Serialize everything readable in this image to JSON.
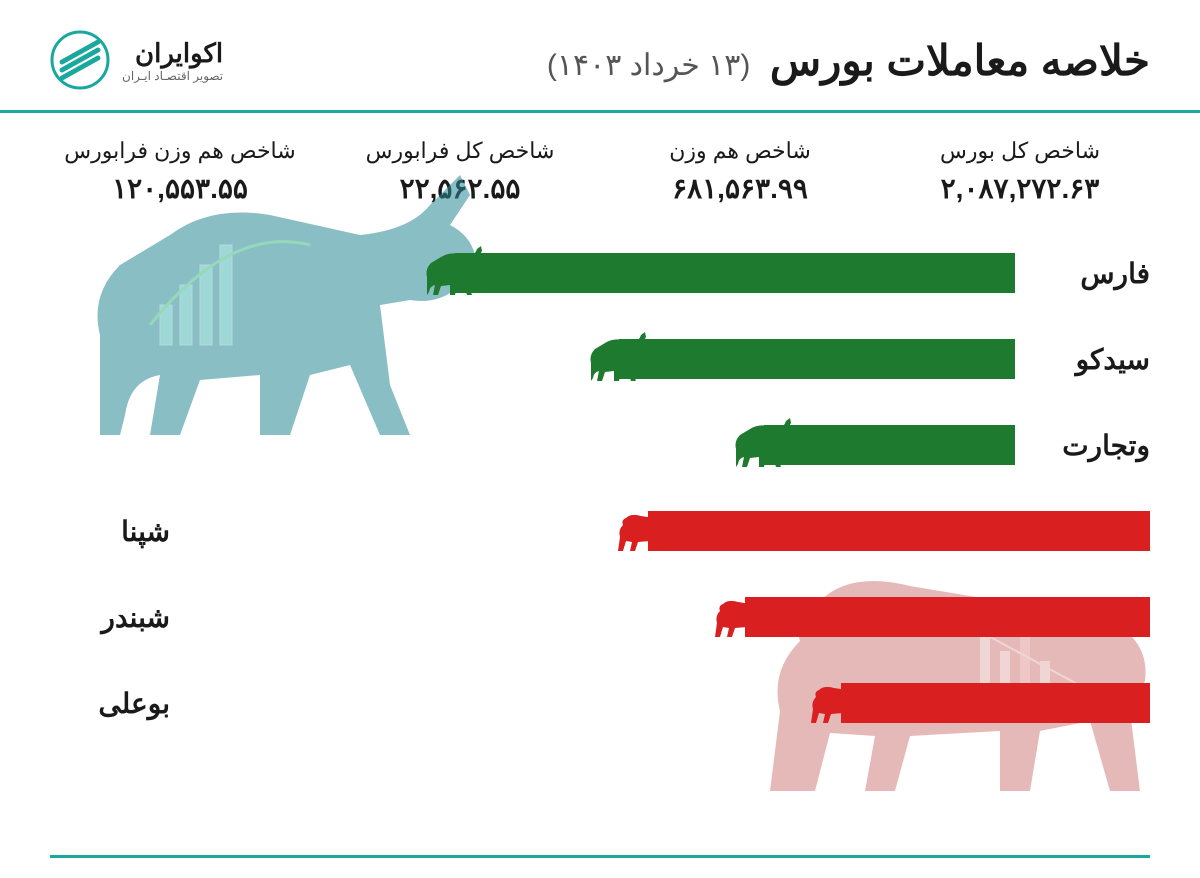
{
  "colors": {
    "accent": "#1aa89e",
    "positive": "#1e7a2e",
    "negative": "#d91f1f",
    "text": "#1a1a1a",
    "bg_bull_tint": "#2a8a95",
    "bg_bear_tint": "#b93a3a"
  },
  "header": {
    "title": "خلاصه معاملات بورس",
    "date": "(۱۳ خرداد ۱۴۰۳)"
  },
  "logo": {
    "name": "اکوایران",
    "tagline": "تصویر اقتصـاد ایـران"
  },
  "indices": [
    {
      "label": "شاخص کل بورس",
      "value": "۲,۰۸۷,۲۷۲.۶۳"
    },
    {
      "label": "شاخص هم وزن",
      "value": "۶۸۱,۵۶۳.۹۹"
    },
    {
      "label": "شاخص کل فرابورس",
      "value": "۲۲,۵۶۲.۵۵"
    },
    {
      "label": "شاخص هم وزن فرابورس",
      "value": "۱۲۰,۵۵۳.۵۵"
    }
  ],
  "bars": {
    "max_width_pct": 100,
    "positive": [
      {
        "label": "فارس",
        "width_pct": 58
      },
      {
        "label": "سیدکو",
        "width_pct": 41
      },
      {
        "label": "وتجارت",
        "width_pct": 26
      }
    ],
    "negative": [
      {
        "label": "شپنا",
        "width_pct": 52
      },
      {
        "label": "شبندر",
        "width_pct": 42
      },
      {
        "label": "بوعلی",
        "width_pct": 32
      }
    ]
  }
}
